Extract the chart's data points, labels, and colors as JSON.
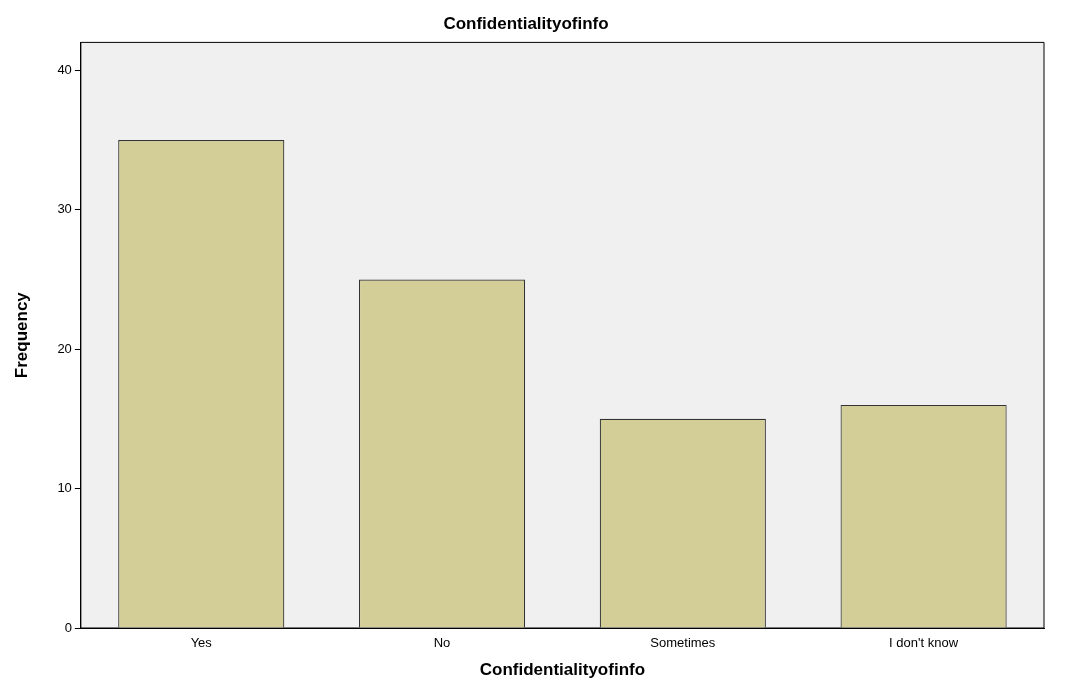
{
  "chart_data": {
    "type": "bar",
    "title": "Confidentialityofinfo",
    "xlabel": "Confidentialityofinfo",
    "ylabel": "Frequency",
    "categories": [
      "Yes",
      "No",
      "Sometimes",
      "I don't know"
    ],
    "values": [
      35,
      25,
      15,
      16
    ],
    "color": "#d3ce97",
    "ylim": [
      0,
      42
    ],
    "yticks": [
      0,
      10,
      20,
      30,
      40
    ],
    "grid": false,
    "legend": false
  }
}
